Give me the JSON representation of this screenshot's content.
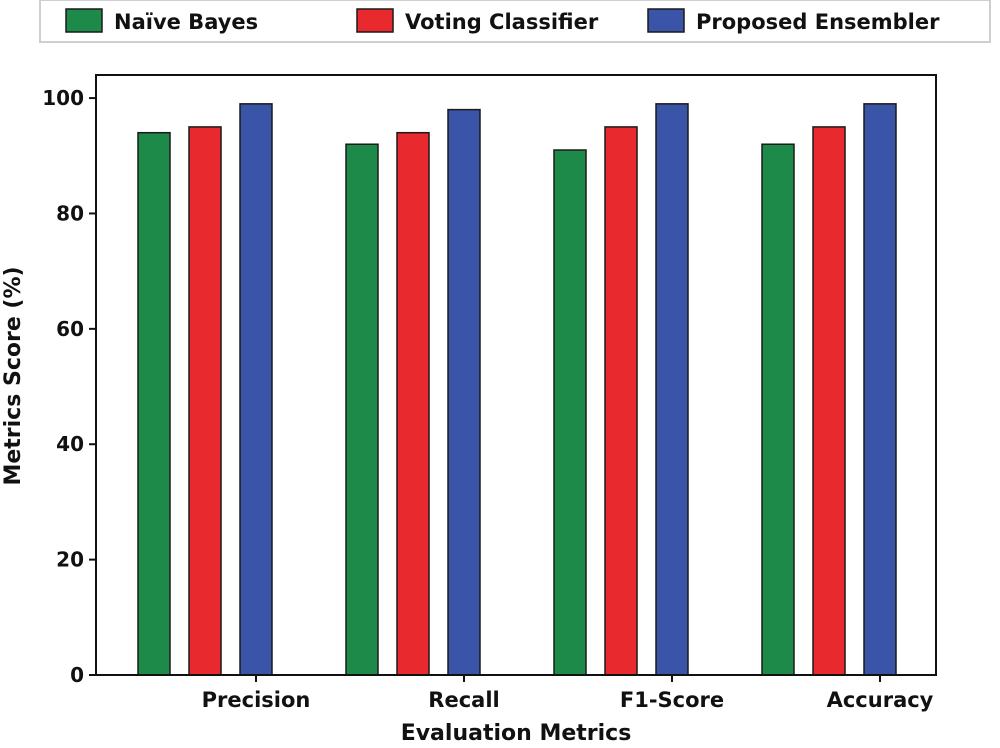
{
  "chart_data": {
    "type": "bar",
    "title": "",
    "xlabel": "Evaluation Metrics",
    "ylabel": "Metrics Score (%)",
    "ylim": [
      0,
      104
    ],
    "yticks": [
      0,
      20,
      40,
      60,
      80,
      100
    ],
    "grid": false,
    "legend_position": "top",
    "categories": [
      "Precision",
      "Recall",
      "F1-Score",
      "Accuracy"
    ],
    "series": [
      {
        "name": "Naïve Bayes",
        "color": "#1e8a4a",
        "values": [
          94,
          92,
          91,
          92
        ]
      },
      {
        "name": "Voting Classifier",
        "color": "#e8292d",
        "values": [
          95,
          94,
          95,
          95
        ]
      },
      {
        "name": "Proposed Ensembler",
        "color": "#3a55a8",
        "values": [
          99,
          98,
          99,
          99
        ]
      }
    ]
  }
}
